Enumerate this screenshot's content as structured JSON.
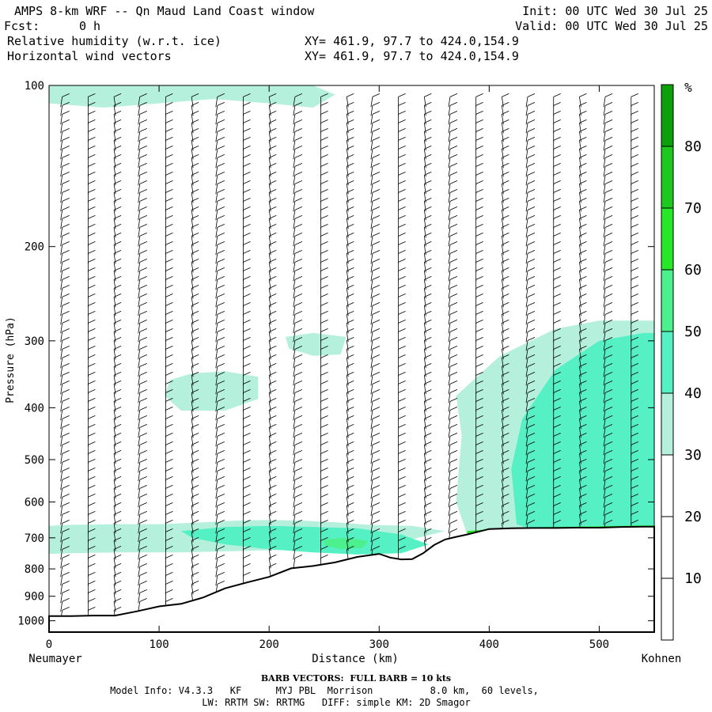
{
  "header": {
    "title": "AMPS 8-km WRF -- Qn Maud Land Coast window",
    "fcst_label": "Fcst:",
    "fcst_value": "0 h",
    "init": "Init: 00 UTC Wed 30 Jul 25",
    "valid": "Valid: 00 UTC Wed 30 Jul 25",
    "field1": "Relative humidity (w.r.t. ice)",
    "field2": "Horizontal wind vectors",
    "xy1": "XY= 461.9, 97.7 to 424.0,154.9",
    "xy2": "XY= 461.9, 97.7 to 424.0,154.9"
  },
  "footer": {
    "left_station": "Neumayer",
    "right_station": "Kohnen",
    "barb_note": "BARB VECTORS:  FULL BARB = 10 kts",
    "model_info": "Model Info: V4.3.3   KF      MYJ PBL  Morrison          8.0 km,  60 levels,",
    "physics": "LW: RRTM SW: RRTMG   DIFF: simple KM: 2D Smagor"
  },
  "colorbar": {
    "unit": "%",
    "levels": [
      10,
      20,
      30,
      40,
      50,
      60,
      70,
      80
    ],
    "colors": [
      "#ffffff",
      "#ffffff",
      "#ffffff",
      "#b4f0dc",
      "#55f0c4",
      "#4cf08c",
      "#28e628",
      "#1ec81e",
      "#0ca00c"
    ]
  },
  "chart_data": {
    "type": "heatmap",
    "title": "Relative humidity (w.r.t. ice)",
    "xlabel": "Distance (km)",
    "ylabel": "Pressure (hPa)",
    "xlim": [
      0,
      550
    ],
    "ylim": [
      1050,
      100
    ],
    "x_ticks": [
      0,
      100,
      200,
      300,
      400,
      500
    ],
    "y_ticks": [
      100,
      200,
      300,
      400,
      500,
      600,
      700,
      800,
      900,
      1000
    ],
    "y_scale": "log",
    "grid": false,
    "terrain": {
      "x": [
        0,
        20,
        40,
        60,
        80,
        100,
        120,
        140,
        160,
        180,
        200,
        220,
        240,
        260,
        280,
        300,
        310,
        320,
        330,
        340,
        350,
        360,
        370,
        380,
        400,
        420,
        440,
        460,
        480,
        500,
        520,
        540,
        550
      ],
      "p": [
        980,
        980,
        978,
        978,
        960,
        940,
        930,
        905,
        870,
        848,
        828,
        798,
        790,
        778,
        760,
        750,
        762,
        768,
        767,
        748,
        722,
        705,
        697,
        690,
        674,
        672,
        671,
        671,
        670,
        670,
        668,
        667,
        667
      ]
    },
    "rh_regions": [
      {
        "level_pct": 35,
        "x": [
          0,
          20,
          60,
          100,
          140,
          170,
          200,
          230,
          260,
          290,
          330,
          360,
          300,
          240,
          180,
          120,
          60,
          20,
          0
        ],
        "p": [
          665,
          662,
          660,
          660,
          655,
          650,
          648,
          650,
          655,
          662,
          665,
          680,
          730,
          735,
          740,
          745,
          745,
          748,
          750
        ]
      },
      {
        "level_pct": 45,
        "x": [
          120,
          160,
          200,
          240,
          280,
          320,
          345,
          320,
          280,
          240,
          200,
          160,
          130
        ],
        "p": [
          680,
          668,
          665,
          668,
          672,
          690,
          720,
          748,
          752,
          745,
          735,
          720,
          700
        ]
      },
      {
        "level_pct": 55,
        "x": [
          250,
          270,
          290,
          285,
          265,
          250
        ],
        "p": [
          705,
          700,
          710,
          730,
          735,
          722
        ]
      },
      {
        "level_pct": 35,
        "x": [
          110,
          130,
          160,
          190,
          190,
          160,
          120,
          105
        ],
        "p": [
          355,
          345,
          342,
          350,
          385,
          405,
          405,
          380
        ]
      },
      {
        "level_pct": 35,
        "x": [
          0,
          40,
          80,
          120,
          160,
          200,
          240,
          260,
          240,
          200,
          150,
          100,
          50,
          0
        ],
        "p": [
          100,
          100,
          100,
          100,
          100,
          100,
          100,
          104,
          110,
          108,
          106,
          108,
          110,
          108
        ]
      },
      {
        "level_pct": 35,
        "x": [
          215,
          240,
          270,
          265,
          240,
          218
        ],
        "p": [
          295,
          290,
          295,
          318,
          320,
          310
        ]
      },
      {
        "level_pct": 35,
        "x": [
          370,
          410,
          460,
          500,
          540,
          550,
          550,
          520,
          480,
          440,
          400,
          380,
          370,
          375
        ],
        "p": [
          380,
          320,
          285,
          275,
          275,
          275,
          670,
          672,
          673,
          675,
          680,
          690,
          600,
          450
        ]
      },
      {
        "level_pct": 45,
        "x": [
          430,
          460,
          500,
          540,
          550,
          550,
          510,
          470,
          440,
          425,
          420
        ],
        "p": [
          420,
          340,
          300,
          290,
          290,
          668,
          670,
          672,
          675,
          660,
          520
        ]
      },
      {
        "level_pct": 65,
        "x": [
          380,
          420,
          460,
          500,
          540,
          550,
          550,
          500,
          450,
          400,
          380
        ],
        "p": [
          680,
          670,
          668,
          666,
          664,
          664,
          672,
          676,
          678,
          680,
          690
        ]
      }
    ]
  }
}
